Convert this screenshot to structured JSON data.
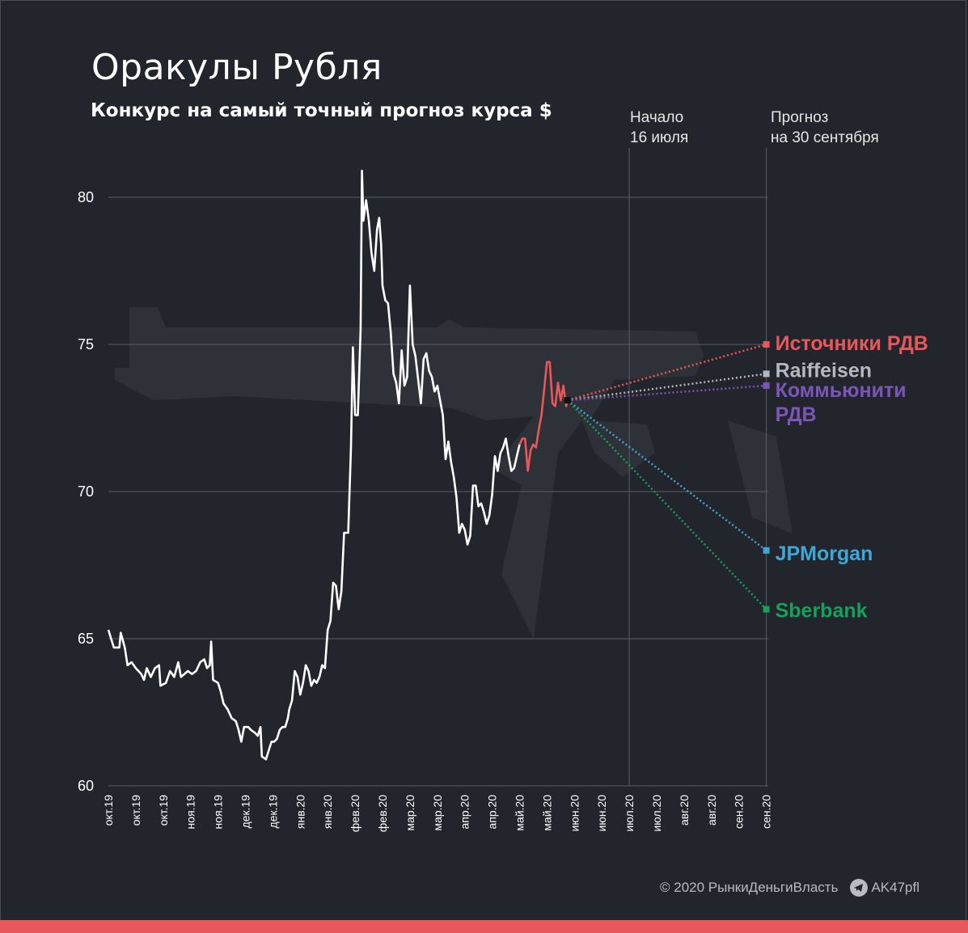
{
  "title": "Оракулы Рубля",
  "subtitle": "Конкурс на самый точный прогноз курса $",
  "markers": {
    "start": {
      "line1": "Начало",
      "line2": "16 июля"
    },
    "forecast": {
      "line1": "Прогноз",
      "line2": "на 30 сентября"
    }
  },
  "footer": {
    "copyright": "© 2020  РынкиДеньгиВласть",
    "telegram": "AK47pfl"
  },
  "colors": {
    "background": "#22252b",
    "history": "#ffffff",
    "after_start": "#e8585a",
    "grid": "#5a5e66",
    "bottom_bar": "#e8585a"
  },
  "chart_data": {
    "type": "line",
    "ylim": [
      60,
      81
    ],
    "yticks": [
      60,
      65,
      70,
      75,
      80
    ],
    "x_tick_labels": [
      "окт.19",
      "окт.19",
      "окт.19",
      "ноя.19",
      "ноя.19",
      "дек.19",
      "дек.19",
      "янв.20",
      "янв.20",
      "фев.20",
      "фев.20",
      "мар.20",
      "мар.20",
      "апр.20",
      "апр.20",
      "май.20",
      "май.20",
      "июн.20",
      "июн.20",
      "июл.20",
      "июл.20",
      "авг.20",
      "авг.20",
      "сен.20",
      "сен.20"
    ],
    "grid": "horizontal",
    "start_marker_index": 19,
    "forecast_marker_index": 24,
    "series": [
      {
        "color": "#ffffff",
        "points": [
          [
            0,
            65.3
          ],
          [
            0.1,
            65.0
          ],
          [
            0.2,
            64.7
          ],
          [
            0.4,
            64.7
          ],
          [
            0.45,
            65.2
          ],
          [
            0.6,
            64.7
          ],
          [
            0.7,
            64.1
          ],
          [
            0.85,
            64.2
          ],
          [
            1.0,
            64.0
          ],
          [
            1.2,
            63.8
          ],
          [
            1.3,
            63.6
          ],
          [
            1.4,
            64.0
          ],
          [
            1.55,
            63.7
          ],
          [
            1.7,
            64.0
          ],
          [
            1.85,
            64.1
          ],
          [
            1.9,
            63.4
          ],
          [
            2.1,
            63.5
          ],
          [
            2.25,
            63.9
          ],
          [
            2.4,
            63.7
          ],
          [
            2.55,
            64.2
          ],
          [
            2.65,
            63.7
          ],
          [
            2.9,
            63.9
          ],
          [
            3.05,
            63.8
          ],
          [
            3.2,
            63.9
          ],
          [
            3.35,
            64.2
          ],
          [
            3.5,
            64.3
          ],
          [
            3.6,
            64.0
          ],
          [
            3.7,
            64.1
          ],
          [
            3.75,
            64.9
          ],
          [
            3.82,
            63.6
          ],
          [
            4.0,
            63.5
          ],
          [
            4.1,
            63.2
          ],
          [
            4.2,
            62.8
          ],
          [
            4.35,
            62.6
          ],
          [
            4.5,
            62.3
          ],
          [
            4.65,
            62.2
          ],
          [
            4.75,
            61.9
          ],
          [
            4.85,
            61.5
          ],
          [
            4.95,
            62.0
          ],
          [
            5.1,
            62.0
          ],
          [
            5.2,
            61.9
          ],
          [
            5.35,
            61.8
          ],
          [
            5.45,
            61.7
          ],
          [
            5.55,
            62.0
          ],
          [
            5.6,
            61.0
          ],
          [
            5.75,
            60.9
          ],
          [
            5.85,
            61.2
          ],
          [
            5.95,
            61.5
          ],
          [
            6.05,
            61.5
          ],
          [
            6.15,
            61.6
          ],
          [
            6.25,
            61.9
          ],
          [
            6.35,
            62.0
          ],
          [
            6.45,
            62.0
          ],
          [
            6.55,
            62.3
          ],
          [
            6.6,
            62.6
          ],
          [
            6.7,
            62.9
          ],
          [
            6.8,
            63.9
          ],
          [
            6.9,
            63.7
          ],
          [
            7.0,
            63.1
          ],
          [
            7.1,
            63.5
          ],
          [
            7.2,
            64.1
          ],
          [
            7.3,
            63.9
          ],
          [
            7.4,
            63.4
          ],
          [
            7.5,
            63.6
          ],
          [
            7.6,
            63.5
          ],
          [
            7.7,
            63.7
          ],
          [
            7.8,
            64.1
          ],
          [
            7.9,
            64.0
          ],
          [
            8.0,
            65.3
          ],
          [
            8.1,
            65.6
          ],
          [
            8.2,
            66.9
          ],
          [
            8.3,
            66.8
          ],
          [
            8.4,
            66.0
          ],
          [
            8.5,
            66.6
          ],
          [
            8.55,
            67.6
          ],
          [
            8.6,
            68.6
          ],
          [
            8.75,
            68.6
          ],
          [
            8.85,
            71.5
          ],
          [
            8.92,
            74.9
          ],
          [
            9.0,
            72.6
          ],
          [
            9.1,
            72.6
          ],
          [
            9.2,
            75.5
          ],
          [
            9.25,
            80.9
          ],
          [
            9.3,
            79.2
          ],
          [
            9.4,
            79.9
          ],
          [
            9.5,
            79.2
          ],
          [
            9.6,
            78.1
          ],
          [
            9.7,
            77.5
          ],
          [
            9.8,
            78.9
          ],
          [
            9.88,
            79.3
          ],
          [
            9.95,
            78.4
          ],
          [
            10.0,
            77.0
          ],
          [
            10.1,
            76.5
          ],
          [
            10.2,
            76.4
          ],
          [
            10.3,
            75.4
          ],
          [
            10.4,
            74.0
          ],
          [
            10.5,
            73.7
          ],
          [
            10.6,
            73.0
          ],
          [
            10.7,
            74.8
          ],
          [
            10.8,
            73.6
          ],
          [
            10.9,
            73.9
          ],
          [
            11.0,
            77.0
          ],
          [
            11.1,
            75.0
          ],
          [
            11.2,
            74.6
          ],
          [
            11.3,
            73.8
          ],
          [
            11.4,
            73.0
          ],
          [
            11.5,
            74.5
          ],
          [
            11.6,
            74.7
          ],
          [
            11.7,
            74.1
          ],
          [
            11.8,
            73.9
          ],
          [
            11.9,
            73.4
          ],
          [
            12.0,
            73.6
          ],
          [
            12.1,
            73.1
          ],
          [
            12.2,
            72.6
          ],
          [
            12.3,
            71.1
          ],
          [
            12.4,
            71.7
          ],
          [
            12.5,
            71.0
          ],
          [
            12.6,
            70.5
          ],
          [
            12.7,
            69.8
          ],
          [
            12.8,
            68.6
          ],
          [
            12.9,
            68.9
          ],
          [
            13.0,
            68.7
          ],
          [
            13.1,
            68.2
          ],
          [
            13.2,
            68.5
          ],
          [
            13.3,
            70.2
          ],
          [
            13.4,
            70.2
          ],
          [
            13.5,
            69.5
          ],
          [
            13.6,
            69.6
          ],
          [
            13.7,
            69.3
          ],
          [
            13.8,
            68.9
          ],
          [
            13.9,
            69.2
          ],
          [
            14.0,
            69.9
          ],
          [
            14.1,
            71.2
          ],
          [
            14.2,
            70.7
          ],
          [
            14.3,
            71.3
          ],
          [
            14.4,
            71.5
          ],
          [
            14.5,
            71.8
          ],
          [
            14.6,
            71.2
          ],
          [
            14.7,
            70.7
          ],
          [
            14.8,
            70.8
          ],
          [
            14.9,
            71.2
          ],
          [
            15.0,
            71.6
          ]
        ]
      },
      {
        "color": "#e8585a",
        "points": [
          [
            15.0,
            71.6
          ],
          [
            15.1,
            71.8
          ],
          [
            15.2,
            71.8
          ],
          [
            15.3,
            70.7
          ],
          [
            15.4,
            71.4
          ],
          [
            15.5,
            71.6
          ],
          [
            15.6,
            71.5
          ],
          [
            15.7,
            72.1
          ],
          [
            15.8,
            72.6
          ],
          [
            15.9,
            73.5
          ],
          [
            16.0,
            74.4
          ],
          [
            16.1,
            74.4
          ],
          [
            16.2,
            73.0
          ],
          [
            16.3,
            72.9
          ],
          [
            16.4,
            73.7
          ],
          [
            16.5,
            73.1
          ],
          [
            16.6,
            73.6
          ],
          [
            16.7,
            72.9
          ],
          [
            16.75,
            73.1
          ]
        ]
      }
    ],
    "forecast_origin": [
      16.75,
      73.1
    ],
    "forecasts": [
      {
        "name": "Источники РДВ",
        "value": 75.0,
        "color": "#e8585a"
      },
      {
        "name": "Raiffeisen",
        "value": 74.0,
        "color": "#b4b7bc"
      },
      {
        "name": "Коммьюнити РДВ",
        "value": 73.6,
        "color": "#7a56b8"
      },
      {
        "name": "JPMorgan",
        "value": 68.0,
        "color": "#3fa6d8"
      },
      {
        "name": "Sberbank",
        "value": 66.0,
        "color": "#16a05a"
      }
    ]
  }
}
